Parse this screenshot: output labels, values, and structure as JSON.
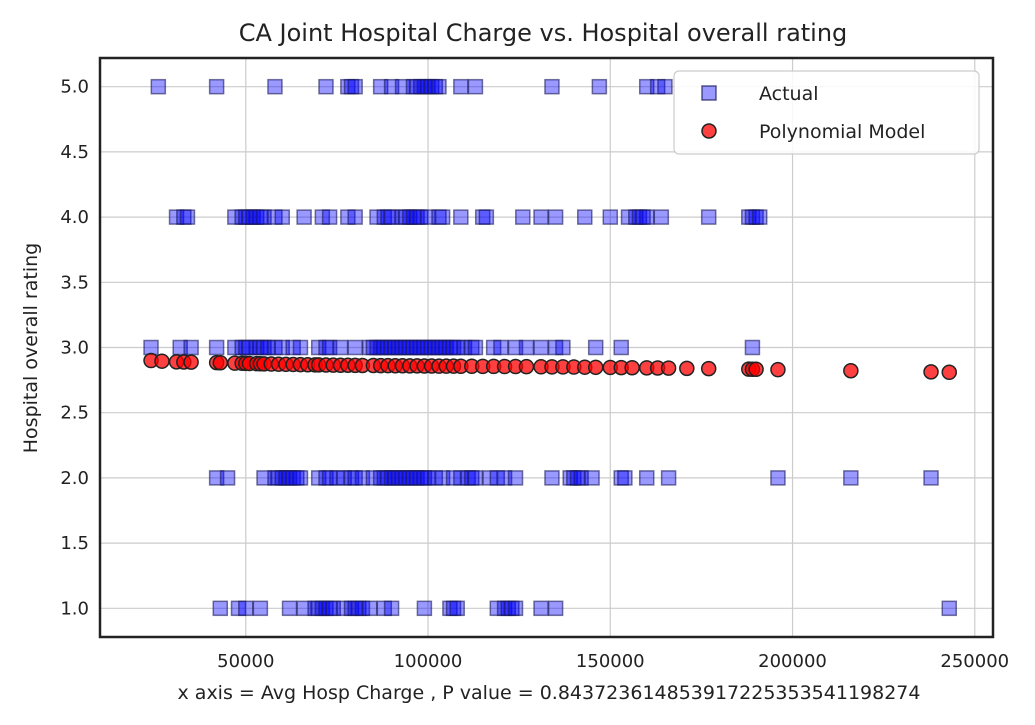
{
  "chart_data": {
    "type": "scatter",
    "title": "CA Joint Hospital Charge vs. Hospital overall rating",
    "xlabel": "x axis = Avg Hosp Charge , P value = 0.8437236148539172253535411982​74",
    "ylabel": "Hospital overall rating",
    "xlim": [
      10000,
      255000
    ],
    "ylim": [
      0.78,
      5.22
    ],
    "x_ticks": [
      50000,
      100000,
      150000,
      200000,
      250000
    ],
    "x_tick_labels": [
      "50000",
      "100000",
      "150000",
      "200000",
      "250000"
    ],
    "y_ticks": [
      1.0,
      1.5,
      2.0,
      2.5,
      3.0,
      3.5,
      4.0,
      4.5,
      5.0
    ],
    "y_tick_labels": [
      "1.0",
      "1.5",
      "2.0",
      "2.5",
      "3.0",
      "3.5",
      "4.0",
      "4.5",
      "5.0"
    ],
    "grid": true,
    "legend_position": "top-right",
    "series": [
      {
        "name": "Actual",
        "marker": "square",
        "color": "#0000ff",
        "points": [
          [
            26000,
            5
          ],
          [
            42000,
            5
          ],
          [
            58000,
            5
          ],
          [
            72000,
            5
          ],
          [
            78000,
            5
          ],
          [
            79000,
            5
          ],
          [
            80000,
            5
          ],
          [
            87000,
            5
          ],
          [
            90000,
            5
          ],
          [
            93000,
            5
          ],
          [
            96000,
            5
          ],
          [
            97000,
            5
          ],
          [
            98000,
            5
          ],
          [
            99000,
            5
          ],
          [
            100000,
            5
          ],
          [
            101000,
            5
          ],
          [
            102000,
            5
          ],
          [
            103000,
            5
          ],
          [
            109000,
            5
          ],
          [
            113000,
            5
          ],
          [
            134000,
            5
          ],
          [
            147000,
            5
          ],
          [
            160000,
            5
          ],
          [
            163000,
            5
          ],
          [
            165000,
            5
          ],
          [
            31000,
            4
          ],
          [
            33000,
            4
          ],
          [
            34000,
            4
          ],
          [
            47000,
            4
          ],
          [
            49000,
            4
          ],
          [
            50000,
            4
          ],
          [
            51000,
            4
          ],
          [
            52000,
            4
          ],
          [
            53000,
            4
          ],
          [
            54000,
            4
          ],
          [
            55000,
            4
          ],
          [
            58000,
            4
          ],
          [
            60000,
            4
          ],
          [
            66000,
            4
          ],
          [
            71000,
            4
          ],
          [
            73000,
            4
          ],
          [
            78000,
            4
          ],
          [
            80000,
            4
          ],
          [
            86000,
            4
          ],
          [
            88000,
            4
          ],
          [
            89000,
            4
          ],
          [
            90000,
            4
          ],
          [
            93000,
            4
          ],
          [
            94000,
            4
          ],
          [
            95000,
            4
          ],
          [
            96000,
            4
          ],
          [
            97000,
            4
          ],
          [
            98000,
            4
          ],
          [
            100000,
            4
          ],
          [
            103000,
            4
          ],
          [
            104000,
            4
          ],
          [
            109000,
            4
          ],
          [
            115000,
            4
          ],
          [
            116000,
            4
          ],
          [
            126000,
            4
          ],
          [
            131000,
            4
          ],
          [
            135000,
            4
          ],
          [
            143000,
            4
          ],
          [
            150000,
            4
          ],
          [
            155000,
            4
          ],
          [
            157000,
            4
          ],
          [
            158000,
            4
          ],
          [
            159000,
            4
          ],
          [
            160000,
            4
          ],
          [
            164000,
            4
          ],
          [
            177000,
            4
          ],
          [
            188000,
            4
          ],
          [
            189000,
            4
          ],
          [
            190000,
            4
          ],
          [
            191000,
            4
          ],
          [
            24000,
            3
          ],
          [
            32000,
            3
          ],
          [
            35000,
            3
          ],
          [
            42000,
            3
          ],
          [
            47000,
            3
          ],
          [
            49000,
            3
          ],
          [
            50000,
            3
          ],
          [
            51000,
            3
          ],
          [
            53000,
            3
          ],
          [
            54000,
            3
          ],
          [
            55000,
            3
          ],
          [
            56000,
            3
          ],
          [
            58000,
            3
          ],
          [
            60000,
            3
          ],
          [
            63000,
            3
          ],
          [
            65000,
            3
          ],
          [
            70000,
            3
          ],
          [
            72000,
            3
          ],
          [
            73000,
            3
          ],
          [
            76000,
            3
          ],
          [
            80000,
            3
          ],
          [
            84000,
            3
          ],
          [
            85000,
            3
          ],
          [
            86000,
            3
          ],
          [
            87000,
            3
          ],
          [
            88000,
            3
          ],
          [
            89000,
            3
          ],
          [
            90000,
            3
          ],
          [
            91000,
            3
          ],
          [
            92000,
            3
          ],
          [
            93000,
            3
          ],
          [
            94000,
            3
          ],
          [
            95000,
            3
          ],
          [
            96000,
            3
          ],
          [
            97000,
            3
          ],
          [
            98000,
            3
          ],
          [
            99000,
            3
          ],
          [
            100000,
            3
          ],
          [
            101000,
            3
          ],
          [
            102000,
            3
          ],
          [
            103000,
            3
          ],
          [
            104000,
            3
          ],
          [
            105000,
            3
          ],
          [
            106000,
            3
          ],
          [
            107000,
            3
          ],
          [
            108000,
            3
          ],
          [
            110000,
            3
          ],
          [
            112000,
            3
          ],
          [
            113000,
            3
          ],
          [
            118000,
            3
          ],
          [
            120000,
            3
          ],
          [
            124000,
            3
          ],
          [
            127000,
            3
          ],
          [
            131000,
            3
          ],
          [
            135000,
            3
          ],
          [
            137000,
            3
          ],
          [
            146000,
            3
          ],
          [
            153000,
            3
          ],
          [
            189000,
            3
          ],
          [
            42000,
            2
          ],
          [
            45000,
            2
          ],
          [
            55000,
            2
          ],
          [
            58000,
            2
          ],
          [
            59000,
            2
          ],
          [
            60000,
            2
          ],
          [
            61000,
            2
          ],
          [
            62000,
            2
          ],
          [
            63000,
            2
          ],
          [
            64000,
            2
          ],
          [
            65000,
            2
          ],
          [
            70000,
            2
          ],
          [
            72000,
            2
          ],
          [
            73000,
            2
          ],
          [
            75000,
            2
          ],
          [
            77000,
            2
          ],
          [
            79000,
            2
          ],
          [
            80000,
            2
          ],
          [
            82000,
            2
          ],
          [
            85000,
            2
          ],
          [
            87000,
            2
          ],
          [
            88000,
            2
          ],
          [
            89000,
            2
          ],
          [
            90000,
            2
          ],
          [
            91000,
            2
          ],
          [
            92000,
            2
          ],
          [
            93000,
            2
          ],
          [
            94000,
            2
          ],
          [
            95000,
            2
          ],
          [
            96000,
            2
          ],
          [
            97000,
            2
          ],
          [
            98000,
            2
          ],
          [
            99000,
            2
          ],
          [
            100000,
            2
          ],
          [
            102000,
            2
          ],
          [
            104000,
            2
          ],
          [
            107000,
            2
          ],
          [
            109000,
            2
          ],
          [
            111000,
            2
          ],
          [
            112000,
            2
          ],
          [
            113000,
            2
          ],
          [
            117000,
            2
          ],
          [
            119000,
            2
          ],
          [
            121000,
            2
          ],
          [
            124000,
            2
          ],
          [
            134000,
            2
          ],
          [
            139000,
            2
          ],
          [
            140000,
            2
          ],
          [
            141000,
            2
          ],
          [
            142000,
            2
          ],
          [
            145000,
            2
          ],
          [
            153000,
            2
          ],
          [
            154000,
            2
          ],
          [
            160000,
            2
          ],
          [
            166000,
            2
          ],
          [
            196000,
            2
          ],
          [
            216000,
            2
          ],
          [
            238000,
            2
          ],
          [
            43000,
            1
          ],
          [
            48000,
            1
          ],
          [
            50000,
            1
          ],
          [
            54000,
            1
          ],
          [
            62000,
            1
          ],
          [
            66000,
            1
          ],
          [
            69000,
            1
          ],
          [
            70000,
            1
          ],
          [
            71000,
            1
          ],
          [
            72000,
            1
          ],
          [
            73000,
            1
          ],
          [
            74000,
            1
          ],
          [
            77000,
            1
          ],
          [
            79000,
            1
          ],
          [
            80000,
            1
          ],
          [
            81000,
            1
          ],
          [
            82000,
            1
          ],
          [
            84000,
            1
          ],
          [
            88000,
            1
          ],
          [
            90000,
            1
          ],
          [
            99000,
            1
          ],
          [
            106000,
            1
          ],
          [
            107000,
            1
          ],
          [
            108000,
            1
          ],
          [
            119000,
            1
          ],
          [
            121000,
            1
          ],
          [
            122000,
            1
          ],
          [
            123000,
            1
          ],
          [
            124000,
            1
          ],
          [
            131000,
            1
          ],
          [
            135000,
            1
          ],
          [
            243000,
            1
          ]
        ]
      },
      {
        "name": "Polynomial Model",
        "marker": "circle",
        "color": "#ff0000",
        "points": [
          [
            24000,
            2.9
          ],
          [
            27000,
            2.895
          ],
          [
            31000,
            2.89
          ],
          [
            33000,
            2.889
          ],
          [
            35000,
            2.888
          ],
          [
            42000,
            2.884
          ],
          [
            43000,
            2.883
          ],
          [
            47000,
            2.88
          ],
          [
            49000,
            2.879
          ],
          [
            50000,
            2.878
          ],
          [
            51000,
            2.877
          ],
          [
            53000,
            2.876
          ],
          [
            54000,
            2.875
          ],
          [
            55000,
            2.874
          ],
          [
            57000,
            2.873
          ],
          [
            59000,
            2.872
          ],
          [
            61000,
            2.871
          ],
          [
            63000,
            2.87
          ],
          [
            65000,
            2.869
          ],
          [
            67000,
            2.868
          ],
          [
            69000,
            2.867
          ],
          [
            70000,
            2.867
          ],
          [
            72000,
            2.866
          ],
          [
            74000,
            2.865
          ],
          [
            76000,
            2.864
          ],
          [
            78000,
            2.864
          ],
          [
            80000,
            2.863
          ],
          [
            82000,
            2.862
          ],
          [
            85000,
            2.862
          ],
          [
            87000,
            2.861
          ],
          [
            89000,
            2.861
          ],
          [
            91000,
            2.86
          ],
          [
            93000,
            2.86
          ],
          [
            95000,
            2.859
          ],
          [
            97000,
            2.859
          ],
          [
            99000,
            2.858
          ],
          [
            101000,
            2.858
          ],
          [
            103000,
            2.857
          ],
          [
            105000,
            2.857
          ],
          [
            107000,
            2.857
          ],
          [
            109000,
            2.856
          ],
          [
            112000,
            2.856
          ],
          [
            115000,
            2.855
          ],
          [
            118000,
            2.855
          ],
          [
            121000,
            2.854
          ],
          [
            124000,
            2.854
          ],
          [
            127000,
            2.853
          ],
          [
            131000,
            2.852
          ],
          [
            134000,
            2.851
          ],
          [
            137000,
            2.851
          ],
          [
            140000,
            2.85
          ],
          [
            143000,
            2.849
          ],
          [
            146000,
            2.848
          ],
          [
            150000,
            2.847
          ],
          [
            153000,
            2.846
          ],
          [
            156000,
            2.845
          ],
          [
            160000,
            2.844
          ],
          [
            163000,
            2.843
          ],
          [
            166000,
            2.842
          ],
          [
            171000,
            2.84
          ],
          [
            177000,
            2.838
          ],
          [
            188000,
            2.834
          ],
          [
            189000,
            2.833
          ],
          [
            190000,
            2.833
          ],
          [
            196000,
            2.83
          ],
          [
            216000,
            2.822
          ],
          [
            238000,
            2.813
          ],
          [
            243000,
            2.81
          ]
        ]
      }
    ]
  }
}
